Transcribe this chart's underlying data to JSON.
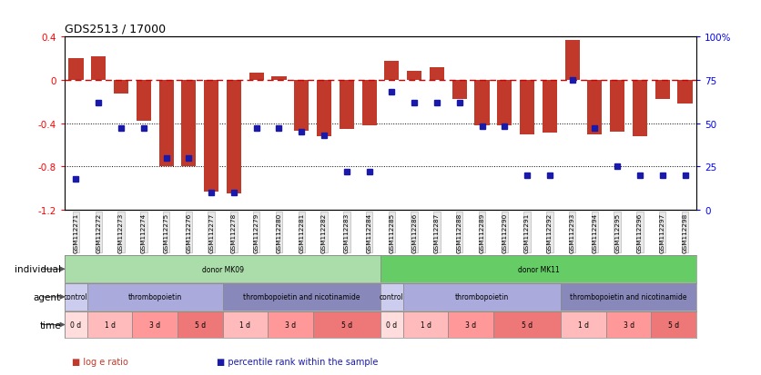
{
  "title": "GDS2513 / 17000",
  "samples": [
    "GSM112271",
    "GSM112272",
    "GSM112273",
    "GSM112274",
    "GSM112275",
    "GSM112276",
    "GSM112277",
    "GSM112278",
    "GSM112279",
    "GSM112280",
    "GSM112281",
    "GSM112282",
    "GSM112283",
    "GSM112284",
    "GSM112285",
    "GSM112286",
    "GSM112287",
    "GSM112288",
    "GSM112289",
    "GSM112290",
    "GSM112291",
    "GSM112292",
    "GSM112293",
    "GSM112294",
    "GSM112295",
    "GSM112296",
    "GSM112297",
    "GSM112298"
  ],
  "log_e_ratio": [
    0.2,
    0.22,
    -0.13,
    -0.38,
    -0.8,
    -0.8,
    -1.03,
    -1.05,
    0.07,
    0.03,
    -0.47,
    -0.52,
    -0.45,
    -0.42,
    0.18,
    0.08,
    0.12,
    -0.18,
    -0.42,
    -0.42,
    -0.5,
    -0.49,
    0.37,
    -0.5,
    -0.48,
    -0.52,
    -0.18,
    -0.22
  ],
  "percentile": [
    18,
    62,
    47,
    47,
    30,
    30,
    10,
    10,
    47,
    47,
    45,
    43,
    22,
    22,
    68,
    62,
    62,
    62,
    48,
    48,
    20,
    20,
    75,
    47,
    25,
    20,
    20,
    20
  ],
  "bar_color": "#c0392b",
  "dot_color": "#1a1aaa",
  "ref_line_color": "#cc0000",
  "dot_line_color": "#555555",
  "bg_color": "#ffffff",
  "ylim_left": [
    -1.2,
    0.4
  ],
  "ylim_right": [
    0,
    100
  ],
  "yticks_left": [
    -1.2,
    -0.8,
    -0.4,
    0.0,
    0.4
  ],
  "ytick_labels_left": [
    "-1.2",
    "-0.8",
    "-0.4",
    "0",
    "0.4"
  ],
  "yticks_right": [
    0,
    25,
    50,
    75,
    100
  ],
  "ytick_labels_right": [
    "0",
    "25",
    "50",
    "75",
    "100%"
  ],
  "individual_row": {
    "label": "individual",
    "groups": [
      {
        "text": "donor MK09",
        "start": 0,
        "end": 14,
        "color": "#aaddaa"
      },
      {
        "text": "donor MK11",
        "start": 14,
        "end": 28,
        "color": "#66cc66"
      }
    ]
  },
  "agent_row": {
    "label": "agent",
    "groups": [
      {
        "text": "control",
        "start": 0,
        "end": 1,
        "color": "#ccccee"
      },
      {
        "text": "thrombopoietin",
        "start": 1,
        "end": 7,
        "color": "#aaaadd"
      },
      {
        "text": "thrombopoietin and nicotinamide",
        "start": 7,
        "end": 14,
        "color": "#8888bb"
      },
      {
        "text": "control",
        "start": 14,
        "end": 15,
        "color": "#ccccee"
      },
      {
        "text": "thrombopoietin",
        "start": 15,
        "end": 22,
        "color": "#aaaadd"
      },
      {
        "text": "thrombopoietin and nicotinamide",
        "start": 22,
        "end": 28,
        "color": "#8888bb"
      }
    ]
  },
  "time_row": {
    "label": "time",
    "groups": [
      {
        "text": "0 d",
        "start": 0,
        "end": 1,
        "color": "#ffdddd"
      },
      {
        "text": "1 d",
        "start": 1,
        "end": 3,
        "color": "#ffbbbb"
      },
      {
        "text": "3 d",
        "start": 3,
        "end": 5,
        "color": "#ff9999"
      },
      {
        "text": "5 d",
        "start": 5,
        "end": 7,
        "color": "#ee7777"
      },
      {
        "text": "1 d",
        "start": 7,
        "end": 9,
        "color": "#ffbbbb"
      },
      {
        "text": "3 d",
        "start": 9,
        "end": 11,
        "color": "#ff9999"
      },
      {
        "text": "5 d",
        "start": 11,
        "end": 14,
        "color": "#ee7777"
      },
      {
        "text": "0 d",
        "start": 14,
        "end": 15,
        "color": "#ffdddd"
      },
      {
        "text": "1 d",
        "start": 15,
        "end": 17,
        "color": "#ffbbbb"
      },
      {
        "text": "3 d",
        "start": 17,
        "end": 19,
        "color": "#ff9999"
      },
      {
        "text": "5 d",
        "start": 19,
        "end": 22,
        "color": "#ee7777"
      },
      {
        "text": "1 d",
        "start": 22,
        "end": 24,
        "color": "#ffbbbb"
      },
      {
        "text": "3 d",
        "start": 24,
        "end": 26,
        "color": "#ff9999"
      },
      {
        "text": "5 d",
        "start": 26,
        "end": 28,
        "color": "#ee7777"
      }
    ]
  },
  "legend": [
    {
      "label": "log e ratio",
      "color": "#c0392b"
    },
    {
      "label": "percentile rank within the sample",
      "color": "#1a1aaa"
    }
  ]
}
